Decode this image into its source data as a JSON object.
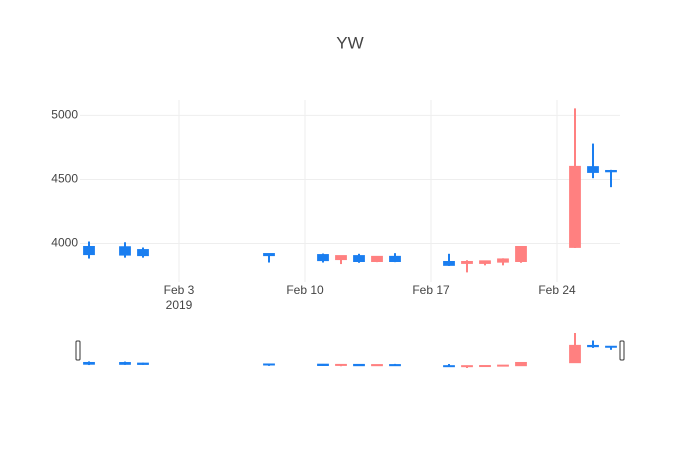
{
  "chart_data": {
    "type": "candlestick",
    "title": "YW",
    "x": [
      "2019-01-29",
      "2019-01-31",
      "2019-02-01",
      "2019-02-08",
      "2019-02-11",
      "2019-02-12",
      "2019-02-13",
      "2019-02-14",
      "2019-02-15",
      "2019-02-18",
      "2019-02-19",
      "2019-02-20",
      "2019-02-21",
      "2019-02-22",
      "2019-02-25",
      "2019-02-26",
      "2019-02-27"
    ],
    "open": [
      3914,
      3910,
      3906,
      3906,
      3867,
      3906,
      3860,
      3900,
      3860,
      3830,
      3860,
      3865,
      3880,
      3977,
      4602,
      4555,
      4560
    ],
    "high": [
      4016,
      4010,
      3969,
      3922,
      3922,
      3906,
      3920,
      3900,
      3925,
      3920,
      3870,
      3865,
      3885,
      3977,
      5055,
      4780,
      4575
    ],
    "low": [
      3883,
      3890,
      3890,
      3852,
      3852,
      3840,
      3850,
      3855,
      3855,
      3825,
      3775,
      3830,
      3830,
      3850,
      3965,
      4510,
      4440
    ],
    "close": [
      3977,
      3975,
      3953,
      3922,
      3914,
      3875,
      3906,
      3860,
      3900,
      3860,
      3845,
      3845,
      3855,
      3860,
      3970,
      4600,
      4570
    ],
    "increasing_color": "#1a7ef0",
    "decreasing_color": "#ff8080",
    "xlim": [
      "2019-01-28T12:00:00",
      "2019-02-27T12:00:00"
    ],
    "xticks": [
      {
        "value": "2019-02-03",
        "label": "Feb 3"
      },
      {
        "value": "2019-02-10",
        "label": "Feb 10"
      },
      {
        "value": "2019-02-17",
        "label": "Feb 17"
      },
      {
        "value": "2019-02-24",
        "label": "Feb 24"
      }
    ],
    "x_year_label": "2019",
    "ylim": [
      3700,
      5120
    ],
    "yticks": [
      4000,
      4500,
      5000
    ],
    "grid": true,
    "rangeslider": true
  }
}
